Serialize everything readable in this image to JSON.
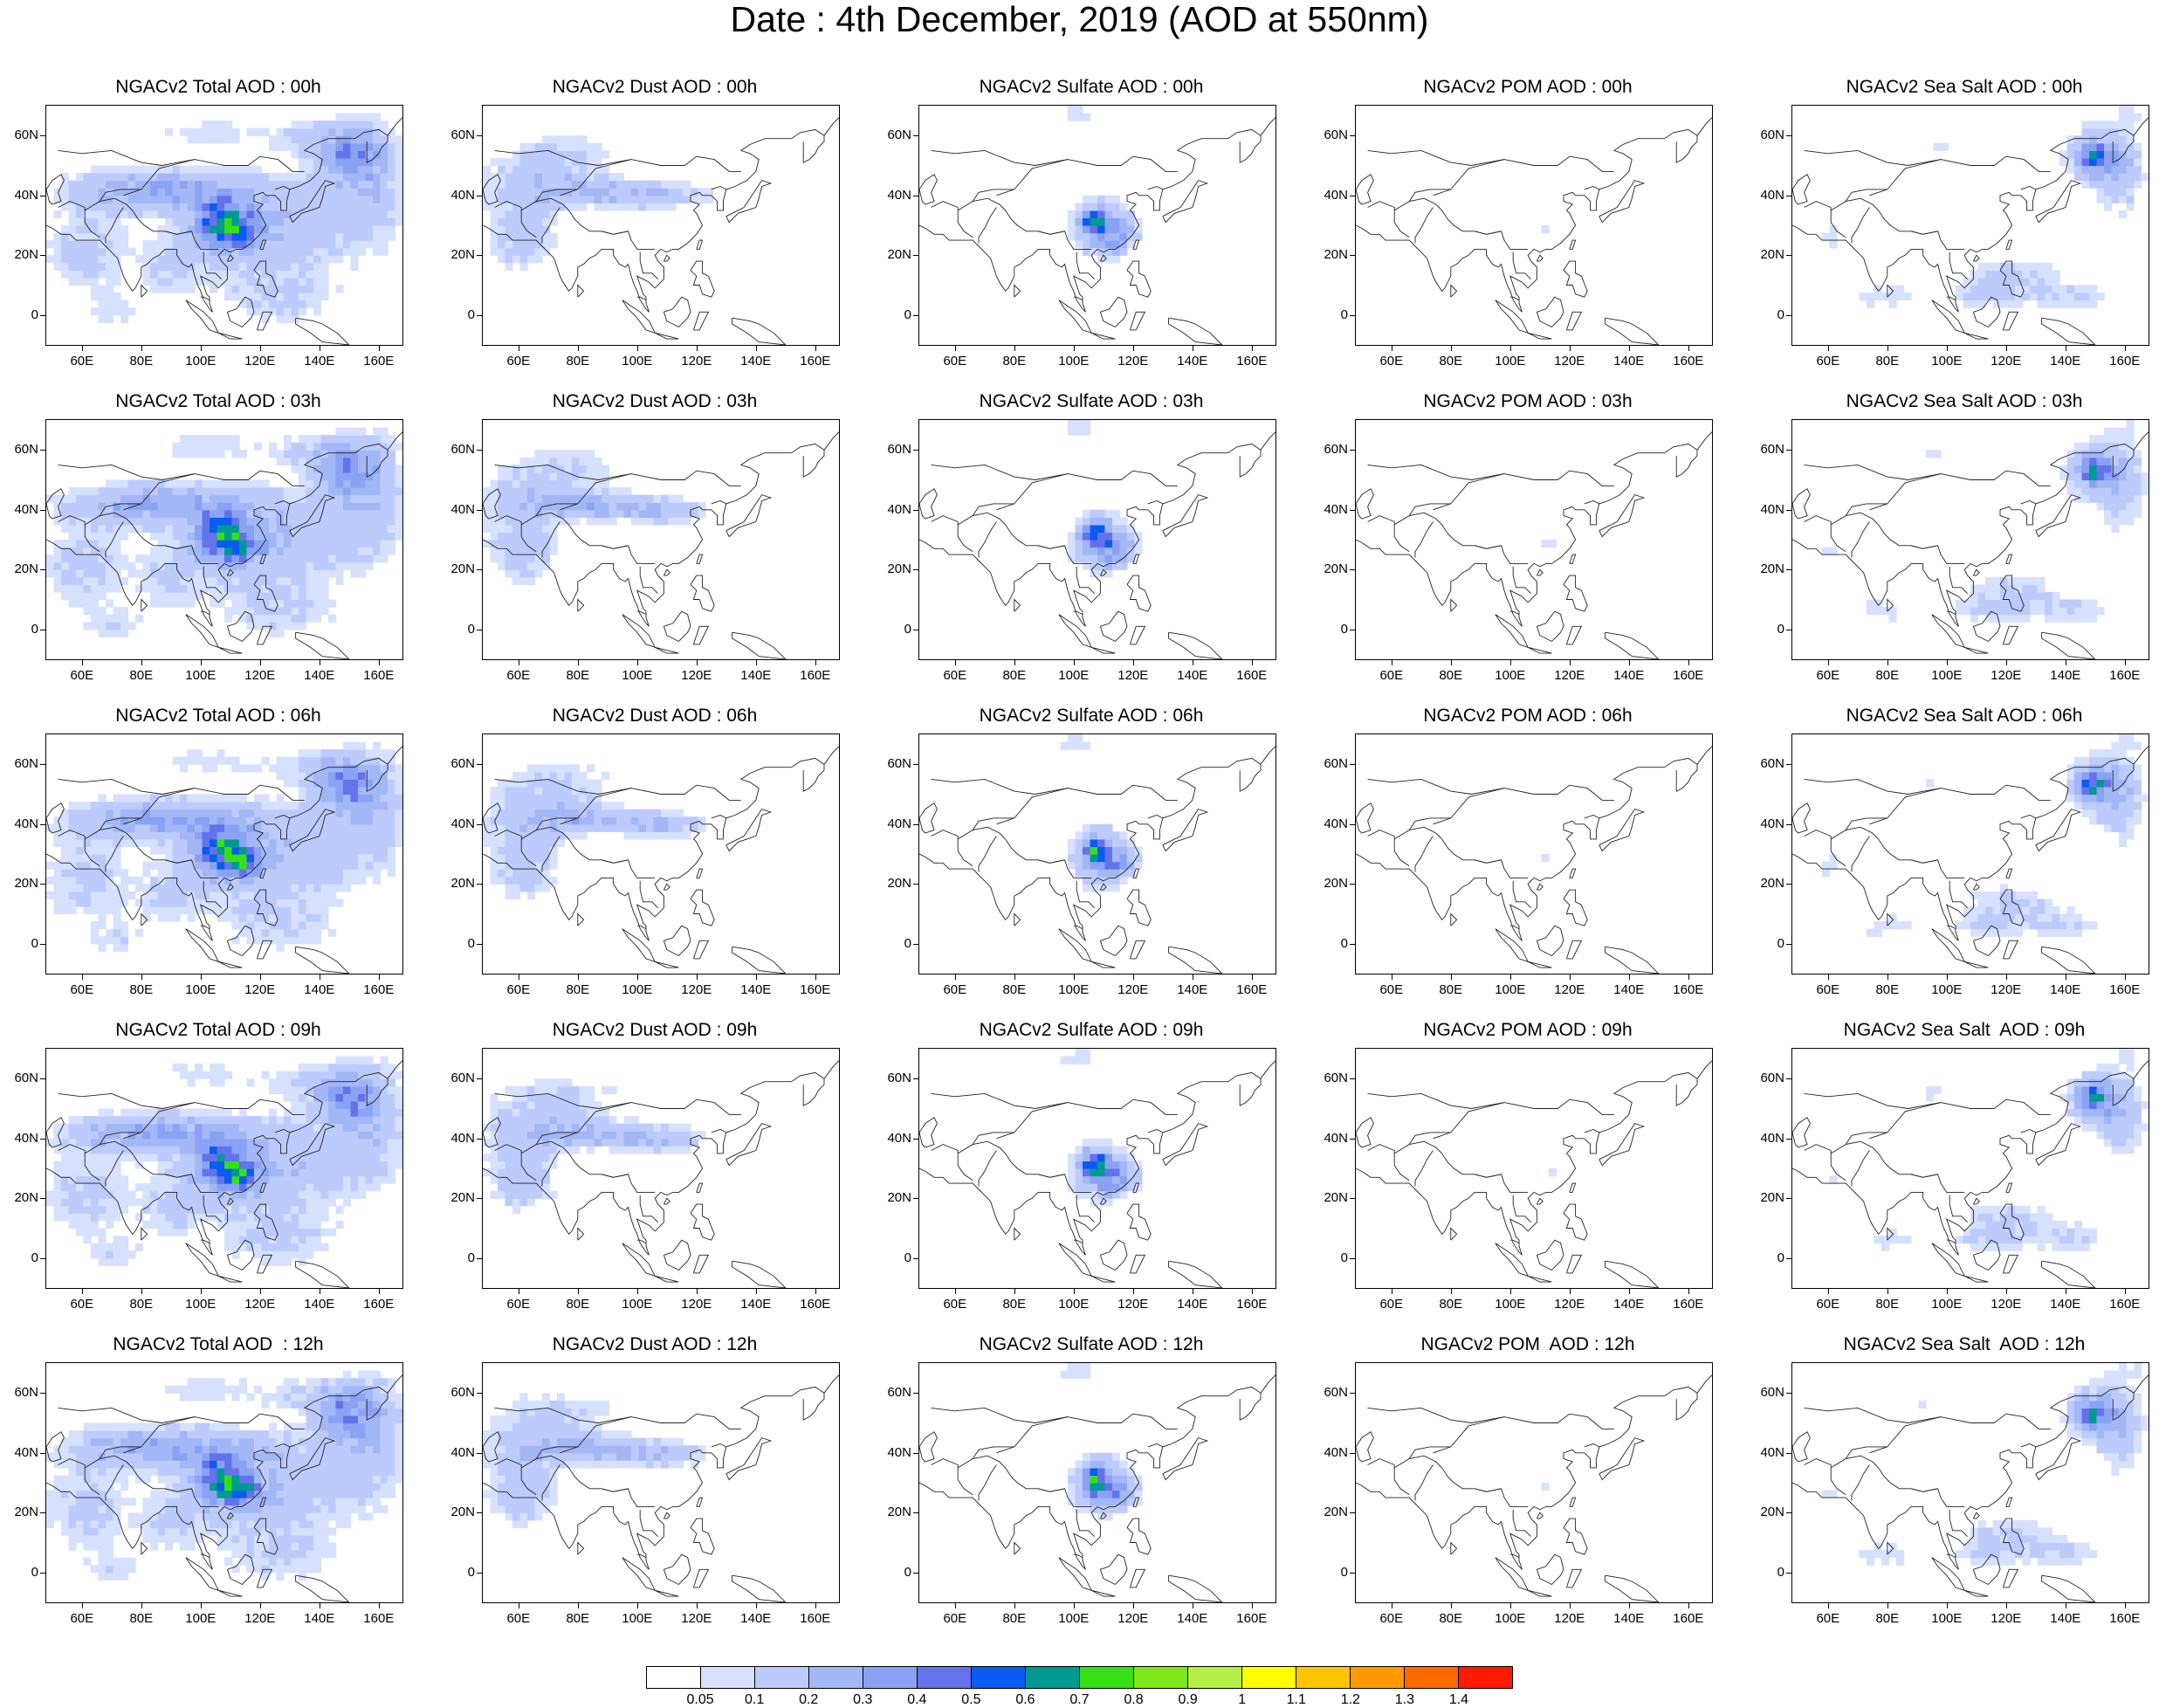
{
  "title": "Date : 4th December, 2019 (AOD at 550nm)",
  "map": {
    "lon_range": [
      48,
      168
    ],
    "lat_range": [
      -10,
      70
    ],
    "xticks": [
      "60E",
      "80E",
      "100E",
      "120E",
      "140E",
      "160E"
    ],
    "xtick_values": [
      60,
      80,
      100,
      120,
      140,
      160
    ],
    "yticks": [
      "60N",
      "40N",
      "20N",
      "0"
    ],
    "ytick_values": [
      60,
      40,
      20,
      0
    ]
  },
  "panels": [
    {
      "title": "NGACv2 Total AOD : 00h",
      "row": 0,
      "col": 0,
      "species": "total"
    },
    {
      "title": "NGACv2 Dust AOD : 00h",
      "row": 0,
      "col": 1,
      "species": "dust"
    },
    {
      "title": "NGACv2 Sulfate AOD : 00h",
      "row": 0,
      "col": 2,
      "species": "sulfate"
    },
    {
      "title": "NGACv2 POM AOD : 00h",
      "row": 0,
      "col": 3,
      "species": "pom"
    },
    {
      "title": "NGACv2 Sea Salt AOD : 00h",
      "row": 0,
      "col": 4,
      "species": "seasalt"
    },
    {
      "title": "NGACv2 Total AOD : 03h",
      "row": 1,
      "col": 0,
      "species": "total"
    },
    {
      "title": "NGACv2 Dust AOD : 03h",
      "row": 1,
      "col": 1,
      "species": "dust"
    },
    {
      "title": "NGACv2 Sulfate AOD : 03h",
      "row": 1,
      "col": 2,
      "species": "sulfate"
    },
    {
      "title": "NGACv2 POM AOD : 03h",
      "row": 1,
      "col": 3,
      "species": "pom"
    },
    {
      "title": "NGACv2 Sea Salt AOD : 03h",
      "row": 1,
      "col": 4,
      "species": "seasalt"
    },
    {
      "title": "NGACv2 Total AOD : 06h",
      "row": 2,
      "col": 0,
      "species": "total"
    },
    {
      "title": "NGACv2 Dust AOD : 06h",
      "row": 2,
      "col": 1,
      "species": "dust"
    },
    {
      "title": "NGACv2 Sulfate AOD : 06h",
      "row": 2,
      "col": 2,
      "species": "sulfate"
    },
    {
      "title": "NGACv2 POM AOD : 06h",
      "row": 2,
      "col": 3,
      "species": "pom"
    },
    {
      "title": "NGACv2 Sea Salt AOD : 06h",
      "row": 2,
      "col": 4,
      "species": "seasalt"
    },
    {
      "title": "NGACv2 Total AOD : 09h",
      "row": 3,
      "col": 0,
      "species": "total"
    },
    {
      "title": "NGACv2 Dust AOD : 09h",
      "row": 3,
      "col": 1,
      "species": "dust"
    },
    {
      "title": "NGACv2 Sulfate AOD : 09h",
      "row": 3,
      "col": 2,
      "species": "sulfate"
    },
    {
      "title": "NGACv2 POM AOD : 09h",
      "row": 3,
      "col": 3,
      "species": "pom"
    },
    {
      "title": "NGACv2 Sea Salt  AOD : 09h",
      "row": 3,
      "col": 4,
      "species": "seasalt"
    },
    {
      "title": "NGACv2 Total AOD  : 12h",
      "row": 4,
      "col": 0,
      "species": "total"
    },
    {
      "title": "NGACv2 Dust AOD : 12h",
      "row": 4,
      "col": 1,
      "species": "dust"
    },
    {
      "title": "NGACv2 Sulfate AOD : 12h",
      "row": 4,
      "col": 2,
      "species": "sulfate"
    },
    {
      "title": "NGACv2 POM  AOD : 12h",
      "row": 4,
      "col": 3,
      "species": "pom"
    },
    {
      "title": "NGACv2 Sea Salt  AOD : 12h",
      "row": 4,
      "col": 4,
      "species": "seasalt"
    }
  ],
  "colorbar": {
    "labels": [
      "0.05",
      "0.1",
      "0.2",
      "0.3",
      "0.4",
      "0.5",
      "0.6",
      "0.7",
      "0.8",
      "0.9",
      "1",
      "1.1",
      "1.2",
      "1.3",
      "1.4"
    ],
    "colors": [
      "#ffffff",
      "#d6e0ff",
      "#bccbfb",
      "#a3b7f7",
      "#8aa2f3",
      "#6472ec",
      "#0a5cf0",
      "#009a92",
      "#36e016",
      "#7fe81a",
      "#b5ee44",
      "#ffff00",
      "#ffc400",
      "#ff9900",
      "#ff6a00",
      "#ff1a00"
    ]
  }
}
